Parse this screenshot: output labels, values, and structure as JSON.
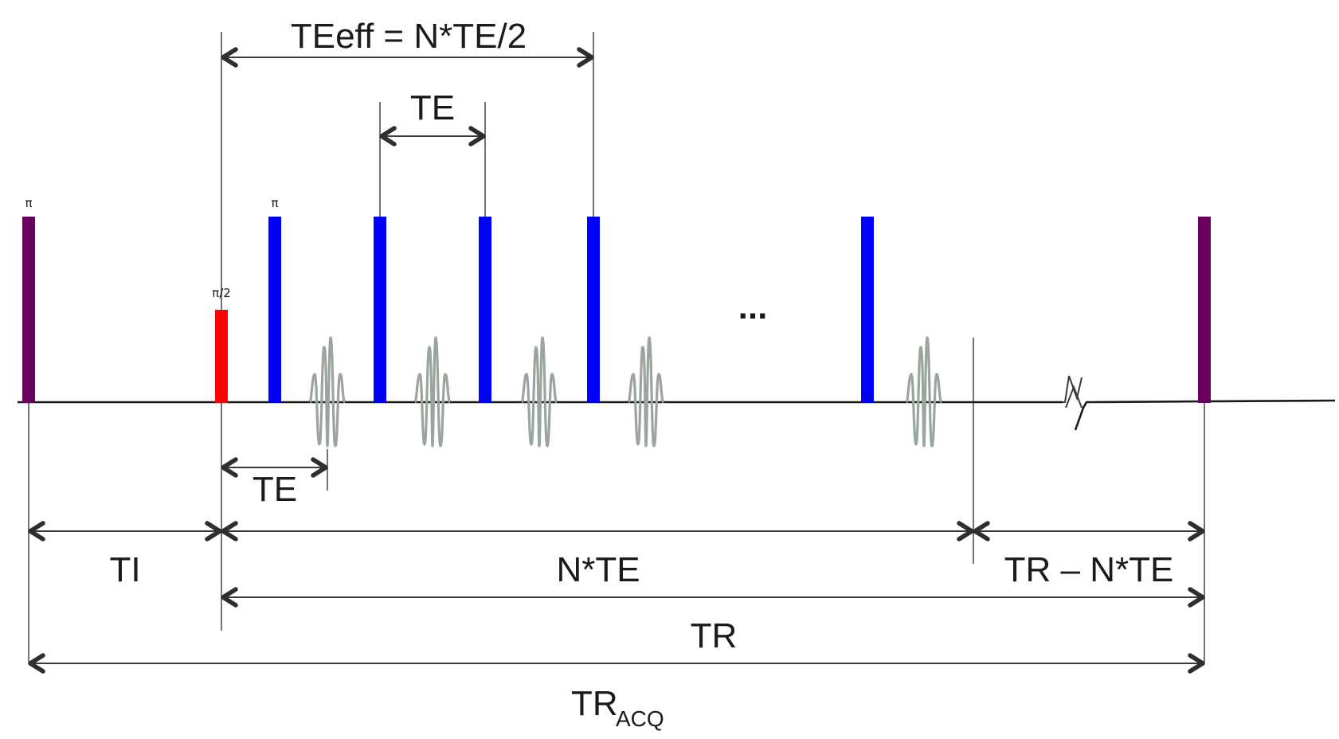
{
  "labels": {
    "pi_inversion": "π",
    "pi_half": "π/2",
    "pi_refocus": "π",
    "te_eff": "TEeff  = N*TE/2",
    "te_top": "TE",
    "te_bottom": "TE",
    "ti": "TI",
    "n_te": "N*TE",
    "tr_minus": "TR – N*TE",
    "tr": "TR",
    "tr_acq_main": "TR",
    "tr_acq_sub": "ACQ",
    "ellipsis": "..."
  },
  "colors": {
    "inversion_pulse": "#6a005f",
    "excitation_pulse": "#ff0000",
    "refocusing_pulse": "#0000ff",
    "echo_signal": "#9aa59e",
    "baseline": "#1a1a1a"
  }
}
